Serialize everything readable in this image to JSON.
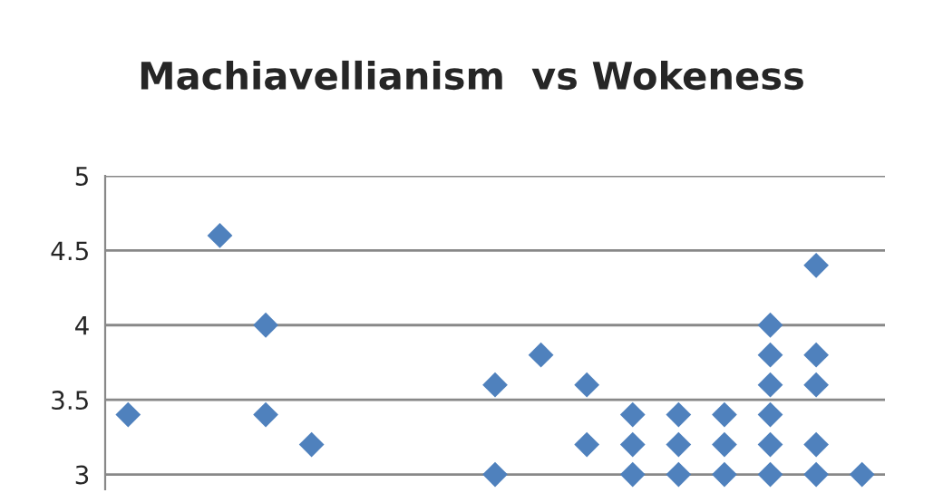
{
  "chart_data": {
    "type": "scatter",
    "title": "Machiavellianism  vs Wokeness",
    "categories": [
      null,
      null,
      null,
      null,
      null,
      null,
      null,
      null,
      null,
      null,
      null,
      null,
      null,
      null,
      null,
      null,
      null
    ],
    "series": [
      {
        "color": "#4f81bd",
        "values": [
          3.4,
          null,
          4.6,
          4.0,
          3.2,
          null,
          null,
          null,
          3.6,
          3.8,
          3.6,
          3.4,
          3.4,
          3.4,
          4.0,
          4.4,
          3.0
        ]
      },
      {
        "color": "#4f81bd",
        "values": [
          null,
          null,
          null,
          3.4,
          null,
          null,
          null,
          null,
          3.0,
          null,
          3.2,
          3.2,
          3.2,
          3.2,
          3.8,
          3.8,
          null
        ]
      },
      {
        "color": "#4f81bd",
        "values": [
          null,
          null,
          null,
          null,
          null,
          null,
          null,
          null,
          null,
          null,
          null,
          3.0,
          3.0,
          3.0,
          3.6,
          3.6,
          null
        ]
      },
      {
        "color": "#4f81bd",
        "values": [
          null,
          null,
          null,
          null,
          null,
          null,
          null,
          null,
          null,
          null,
          null,
          null,
          null,
          null,
          3.4,
          3.2,
          null
        ]
      },
      {
        "color": "#4f81bd",
        "values": [
          null,
          null,
          null,
          null,
          null,
          null,
          null,
          null,
          null,
          null,
          null,
          null,
          null,
          null,
          3.2,
          3.0,
          null
        ]
      },
      {
        "color": "#4f81bd",
        "values": [
          null,
          null,
          null,
          null,
          null,
          null,
          null,
          null,
          null,
          null,
          null,
          null,
          null,
          null,
          3.0,
          null,
          null
        ]
      }
    ],
    "ylim": [
      2.9,
      5
    ],
    "yticks": [
      3,
      3.5,
      4,
      4.5,
      5
    ],
    "grid": "y",
    "marker": "diamond",
    "tick_labels": "y"
  }
}
